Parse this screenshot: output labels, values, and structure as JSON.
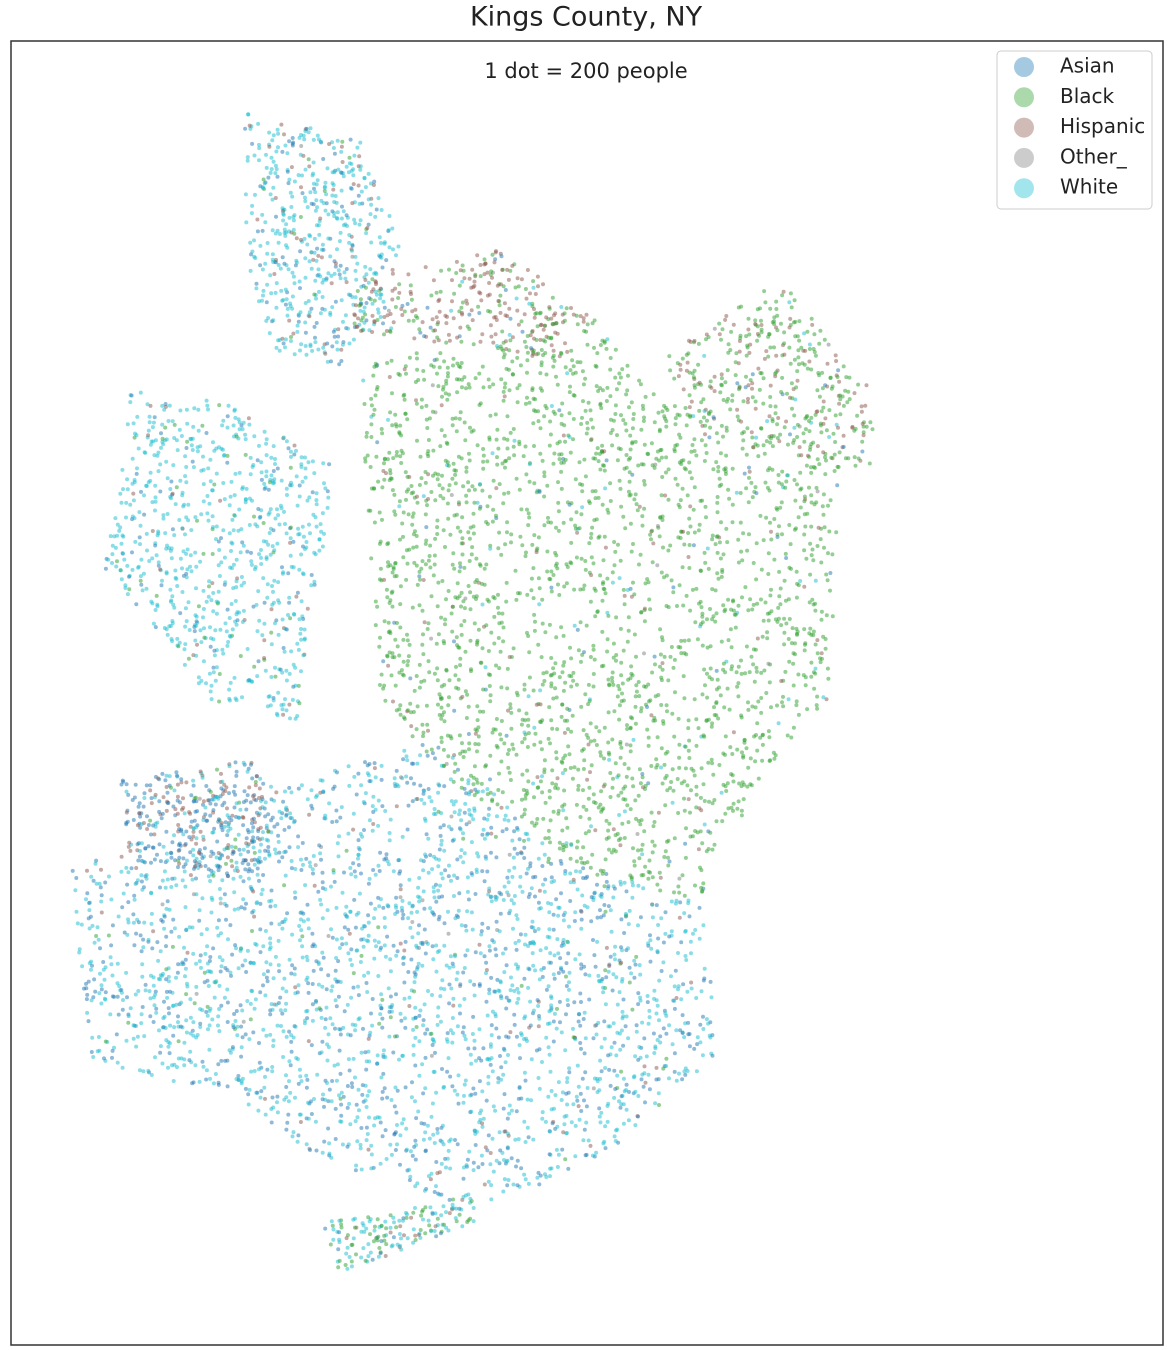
{
  "title": "Kings County, NY",
  "annotation": "1 dot = 200 people",
  "legend": [
    {
      "label": "Asian",
      "color": "#1f77b4"
    },
    {
      "label": "Black",
      "color": "#2ca02c"
    },
    {
      "label": "Hispanic",
      "color": "#8c564b"
    },
    {
      "label": "Other_",
      "color": "#7f7f7f"
    },
    {
      "label": "White",
      "color": "#17becf"
    }
  ]
}
